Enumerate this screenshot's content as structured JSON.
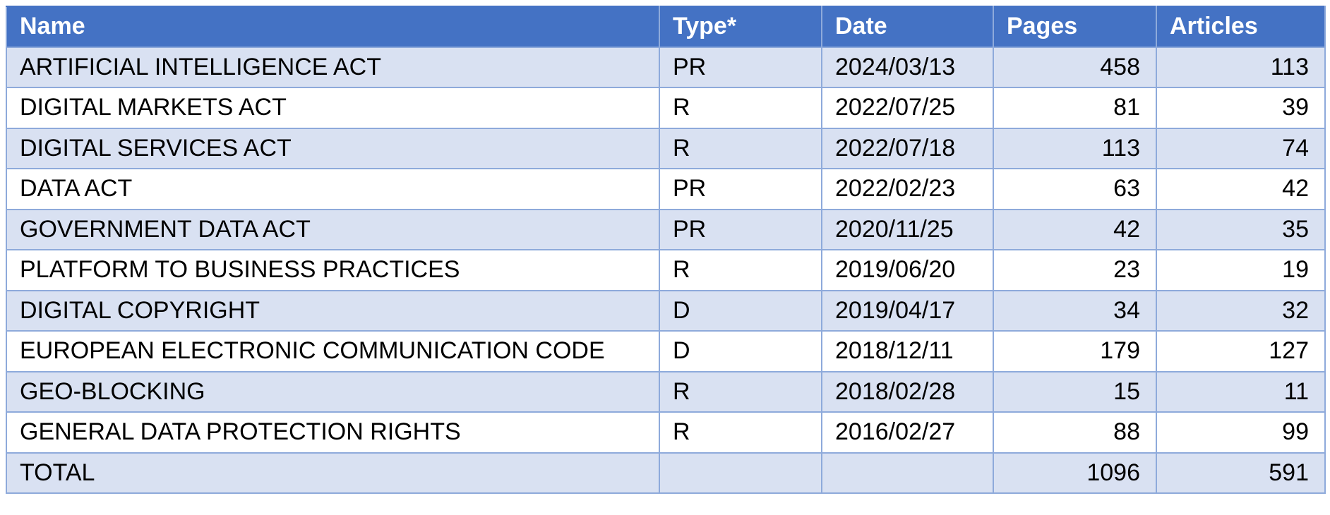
{
  "columns": [
    "Name",
    "Type*",
    "Date",
    "Pages",
    "Articles"
  ],
  "rows": [
    {
      "name": "ARTIFICIAL INTELLIGENCE ACT",
      "type": "PR",
      "date": "2024/03/13",
      "pages": "458",
      "articles": "113"
    },
    {
      "name": "DIGITAL MARKETS ACT",
      "type": "R",
      "date": "2022/07/25",
      "pages": "81",
      "articles": "39"
    },
    {
      "name": "DIGITAL SERVICES ACT",
      "type": "R",
      "date": "2022/07/18",
      "pages": "113",
      "articles": "74"
    },
    {
      "name": "DATA ACT",
      "type": "PR",
      "date": "2022/02/23",
      "pages": "63",
      "articles": "42"
    },
    {
      "name": "GOVERNMENT DATA ACT",
      "type": "PR",
      "date": "2020/11/25",
      "pages": "42",
      "articles": "35"
    },
    {
      "name": "PLATFORM TO BUSINESS PRACTICES",
      "type": "R",
      "date": "2019/06/20",
      "pages": "23",
      "articles": "19"
    },
    {
      "name": "DIGITAL COPYRIGHT",
      "type": "D",
      "date": "2019/04/17",
      "pages": "34",
      "articles": "32"
    },
    {
      "name": "EUROPEAN ELECTRONIC COMMUNICATION CODE",
      "type": "D",
      "date": "2018/12/11",
      "pages": "179",
      "articles": "127"
    },
    {
      "name": "GEO-BLOCKING",
      "type": "R",
      "date": "2018/02/28",
      "pages": "15",
      "articles": "11"
    },
    {
      "name": "GENERAL DATA PROTECTION RIGHTS",
      "type": "R",
      "date": "2016/02/27",
      "pages": "88",
      "articles": "99"
    }
  ],
  "total": {
    "name": "TOTAL",
    "type": "",
    "date": "",
    "pages": "1096",
    "articles": "591"
  },
  "colors": {
    "header_bg": "#4472c4",
    "band_bg": "#d9e1f2",
    "grid": "#8eaadb"
  }
}
